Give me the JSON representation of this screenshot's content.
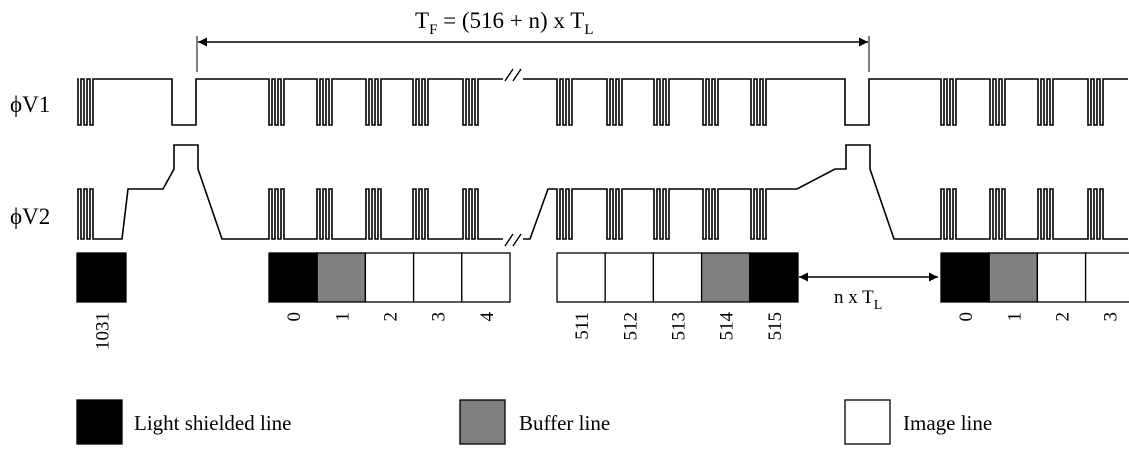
{
  "timing": {
    "frame_period": {
      "base": "T",
      "sub": "F",
      "rest": " = (516 + n) x T",
      "sub2": "L"
    },
    "gap_period": {
      "base": "n x T",
      "sub": "L"
    }
  },
  "signals": [
    {
      "id": "v1",
      "name": "ϕV1"
    },
    {
      "id": "v2",
      "name": "ϕV2"
    }
  ],
  "line_groups": [
    {
      "id": "g0",
      "cells": [
        {
          "type": "shield",
          "label": "1031"
        }
      ]
    },
    {
      "id": "g1",
      "cells": [
        {
          "type": "shield",
          "label": "0"
        },
        {
          "type": "buffer",
          "label": "1"
        },
        {
          "type": "image",
          "label": "2"
        },
        {
          "type": "image",
          "label": "3"
        },
        {
          "type": "image",
          "label": "4"
        }
      ]
    },
    {
      "id": "g2",
      "cells": [
        {
          "type": "image",
          "label": "511"
        },
        {
          "type": "image",
          "label": "512"
        },
        {
          "type": "image",
          "label": "513"
        },
        {
          "type": "buffer",
          "label": "514"
        },
        {
          "type": "shield",
          "label": "515"
        }
      ]
    },
    {
      "id": "g3",
      "cells": [
        {
          "type": "shield",
          "label": "0"
        },
        {
          "type": "buffer",
          "label": "1"
        },
        {
          "type": "image",
          "label": "2"
        },
        {
          "type": "image",
          "label": "3"
        }
      ]
    }
  ],
  "legend": [
    {
      "type": "shield",
      "label": "Light shielded line"
    },
    {
      "type": "buffer",
      "label": "Buffer line"
    },
    {
      "type": "image",
      "label": "Image line"
    }
  ],
  "colors": {
    "shield": "#000000",
    "buffer": "#808080",
    "image": "#ffffff"
  }
}
